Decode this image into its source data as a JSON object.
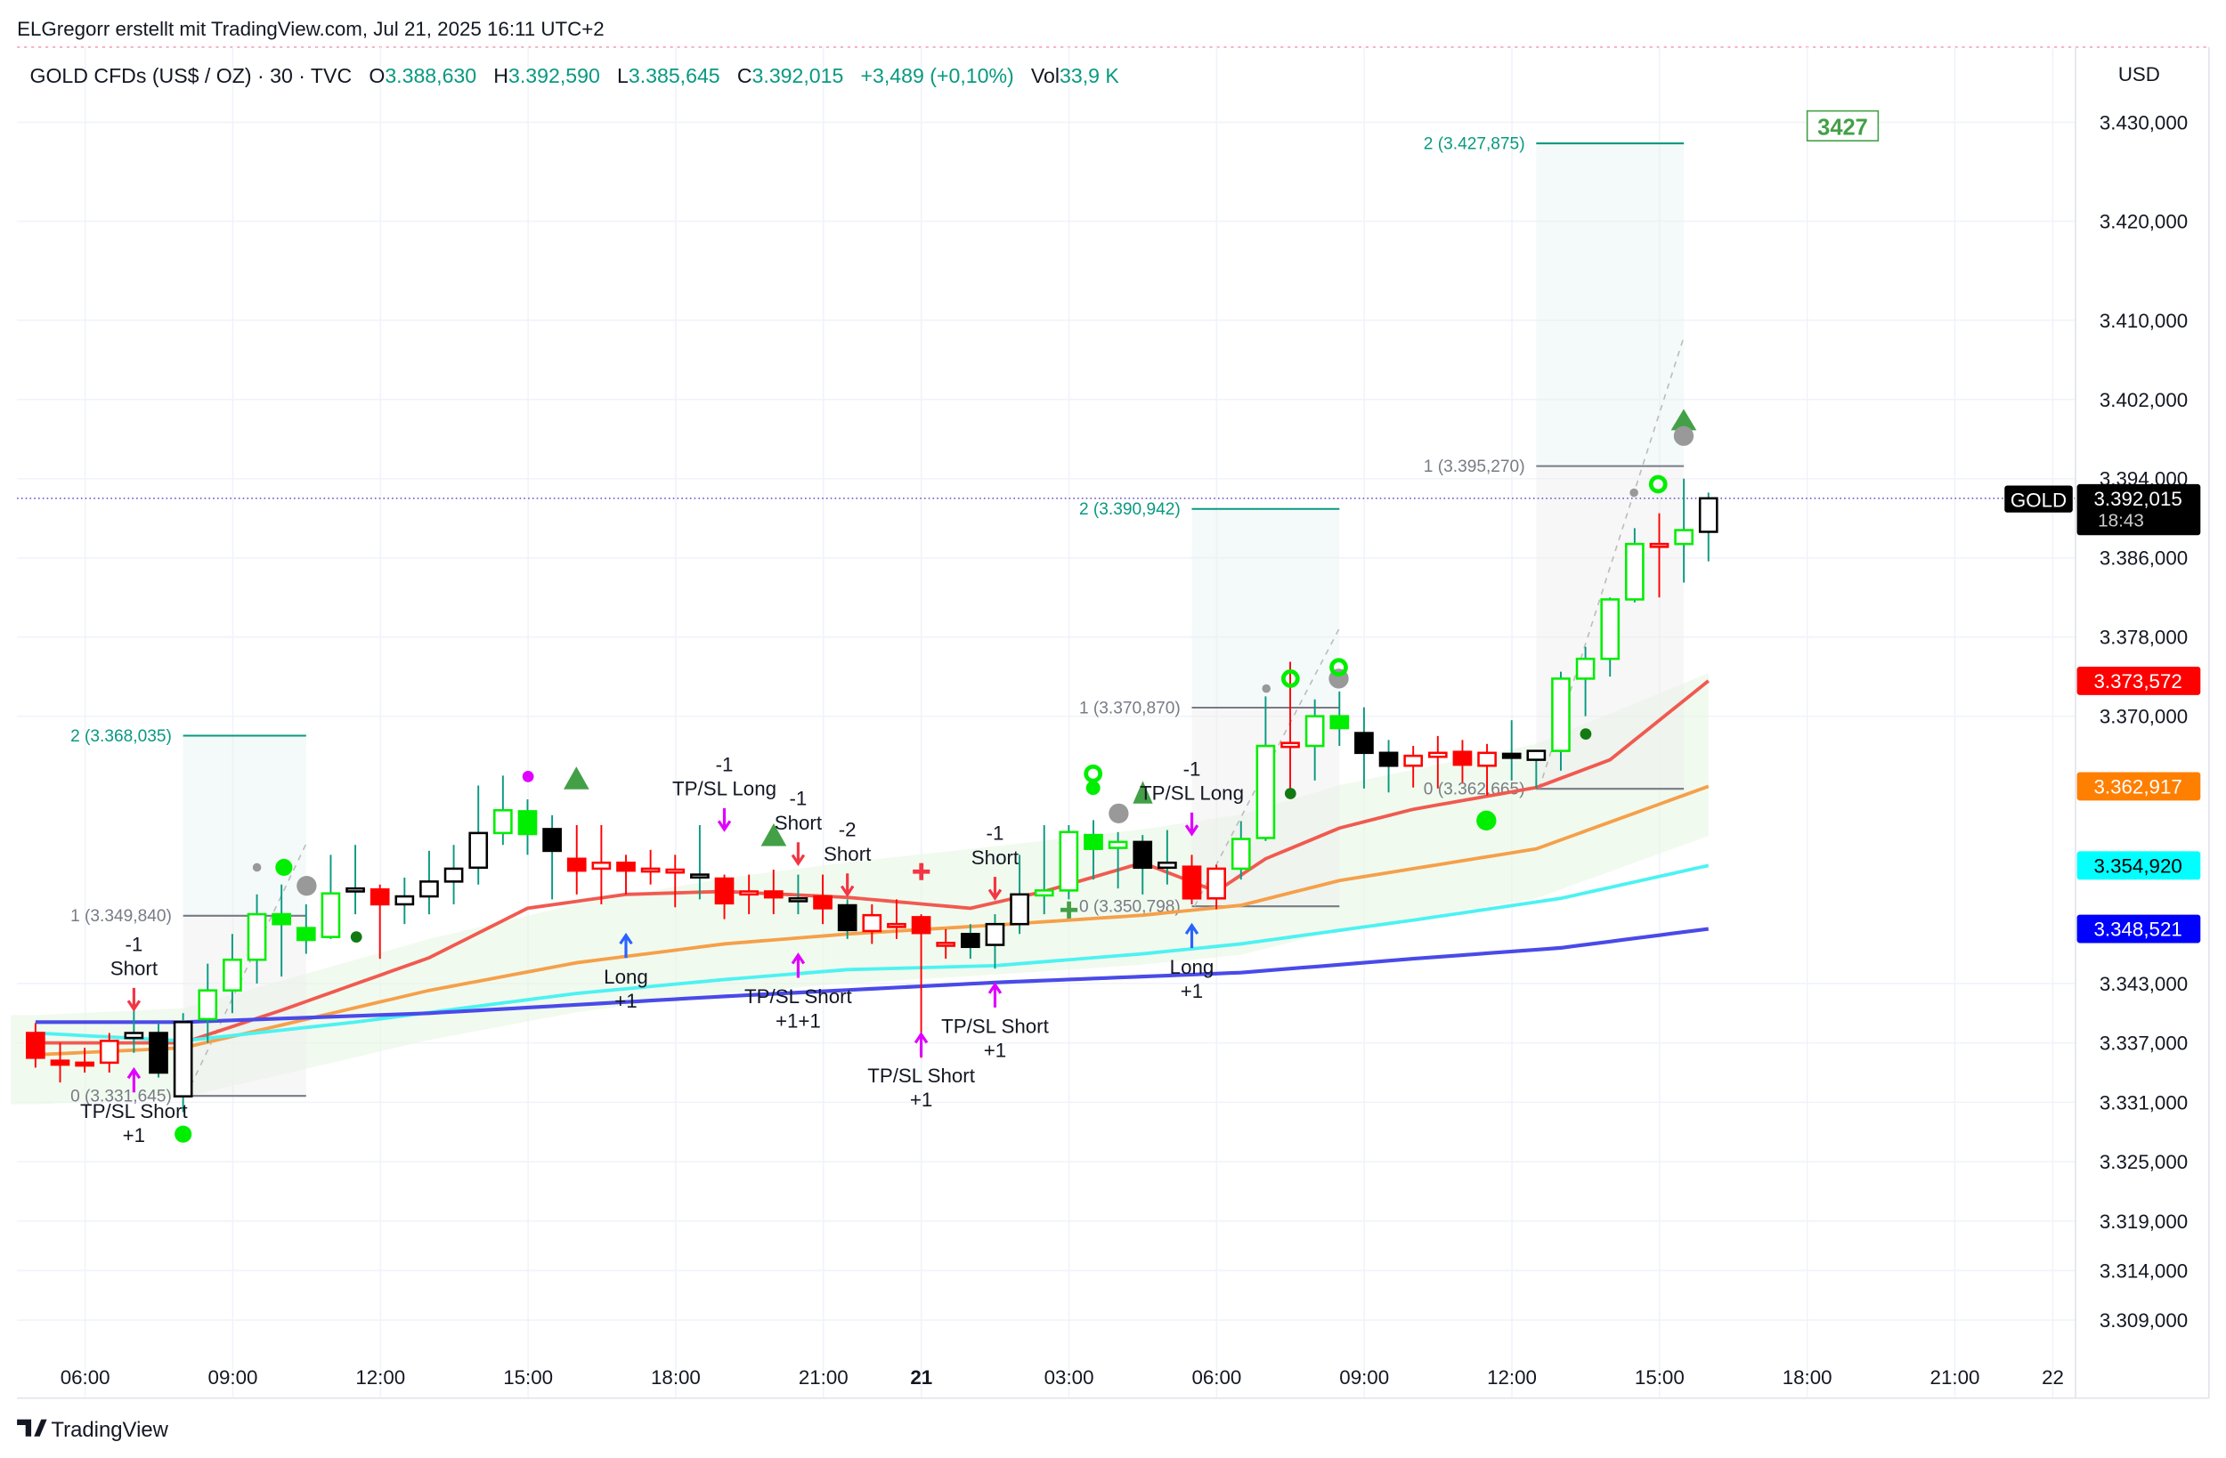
{
  "header": {
    "credit": "ELGregorr erstellt mit TradingView.com, Jul 21, 2025 16:11 UTC+2",
    "symbol": "GOLD CFDs (US$ / OZ) · 30 · TVC",
    "o_label": "O",
    "o_value": "3.388,630",
    "h_label": "H",
    "h_value": "3.392,590",
    "l_label": "L",
    "l_value": "3.385,645",
    "c_label": "C",
    "c_value": "3.392,015",
    "change": "+3,489 (+0,10%)",
    "vol_label": "Vol",
    "vol_value": "33,9 K"
  },
  "currency": "USD",
  "footer_logo": "TradingView",
  "target_badge": "3427",
  "price_labels": [
    {
      "name": "GOLD",
      "value": "3.392,015",
      "sub": "18:43",
      "color": "#000000",
      "price": 3392.015
    },
    {
      "value": "3.373,572",
      "color": "#ff0000",
      "price": 3373.572
    },
    {
      "value": "3.362,917",
      "color": "#ff7f00",
      "price": 3362.917
    },
    {
      "value": "3.354,920",
      "color": "#00ffff",
      "price": 3354.92
    },
    {
      "value": "3.348,521",
      "color": "#0000ff",
      "price": 3348.521
    }
  ],
  "chart_data": {
    "type": "candlestick",
    "interval": "30",
    "ylim": [
      3303,
      3437
    ],
    "grid": true,
    "y_ticks": [
      {
        "v": 3430,
        "label": "3.430,000"
      },
      {
        "v": 3420,
        "label": "3.420,000"
      },
      {
        "v": 3410,
        "label": "3.410,000"
      },
      {
        "v": 3402,
        "label": "3.402,000"
      },
      {
        "v": 3394,
        "label": "3.394,000"
      },
      {
        "v": 3386,
        "label": "3.386,000"
      },
      {
        "v": 3378,
        "label": "3.378,000"
      },
      {
        "v": 3370,
        "label": "3.370,000"
      },
      {
        "v": 3343,
        "label": "3.343,000"
      },
      {
        "v": 3337,
        "label": "3.337,000"
      },
      {
        "v": 3331,
        "label": "3.331,000"
      },
      {
        "v": 3325,
        "label": "3.325,000"
      },
      {
        "v": 3319,
        "label": "3.319,000"
      },
      {
        "v": 3314,
        "label": "3.314,000"
      },
      {
        "v": 3309,
        "label": "3.309,000"
      }
    ],
    "x_ticks": [
      {
        "i": 2,
        "label": "06:00"
      },
      {
        "i": 8,
        "label": "09:00"
      },
      {
        "i": 14,
        "label": "12:00"
      },
      {
        "i": 20,
        "label": "15:00"
      },
      {
        "i": 26,
        "label": "18:00"
      },
      {
        "i": 32,
        "label": "21:00"
      },
      {
        "i": 36,
        "label": "21",
        "bold": true
      },
      {
        "i": 42,
        "label": "03:00"
      },
      {
        "i": 48,
        "label": "06:00"
      },
      {
        "i": 54,
        "label": "09:00"
      },
      {
        "i": 60,
        "label": "12:00"
      },
      {
        "i": 66,
        "label": "15:00"
      },
      {
        "i": 72,
        "label": "18:00"
      },
      {
        "i": 78,
        "label": "21:00"
      },
      {
        "i": 82,
        "label": "22"
      }
    ],
    "candle_columns": [
      "open",
      "high",
      "low",
      "close",
      "color"
    ],
    "candles": [
      [
        3338.0,
        3339.0,
        3334.5,
        3335.5,
        "r"
      ],
      [
        3335.2,
        3337.0,
        3333.0,
        3334.8,
        "r"
      ],
      [
        3335.0,
        3336.5,
        3334.0,
        3334.8,
        "r"
      ],
      [
        3335.0,
        3338.0,
        3334.0,
        3337.2,
        "r"
      ],
      [
        3337.5,
        3341.0,
        3336.0,
        3338.0,
        "k"
      ],
      [
        3338.0,
        3339.0,
        3333.5,
        3334.0,
        "k"
      ],
      [
        3331.6,
        3340.0,
        3330.0,
        3339.1,
        "k"
      ],
      [
        3339.4,
        3345.0,
        3337.0,
        3342.3,
        "g"
      ],
      [
        3342.3,
        3348.0,
        3340.0,
        3345.4,
        "g"
      ],
      [
        3345.4,
        3352.0,
        3343.0,
        3350.0,
        "g"
      ],
      [
        3350.0,
        3353.0,
        3343.7,
        3349.0,
        "g"
      ],
      [
        3348.6,
        3351.0,
        3346.0,
        3347.4,
        "g"
      ],
      [
        3347.7,
        3356.0,
        3347.5,
        3352.1,
        "g"
      ],
      [
        3352.3,
        3357.0,
        3350.0,
        3352.6,
        "k"
      ],
      [
        3352.5,
        3353.0,
        3345.5,
        3351.0,
        "r"
      ],
      [
        3351.0,
        3353.7,
        3349.0,
        3351.8,
        "k"
      ],
      [
        3351.8,
        3356.4,
        3350.0,
        3353.3,
        "k"
      ],
      [
        3353.3,
        3357.0,
        3351.0,
        3354.6,
        "k"
      ],
      [
        3354.7,
        3363.0,
        3353.0,
        3358.2,
        "k"
      ],
      [
        3358.2,
        3364.0,
        3357.0,
        3360.5,
        "g"
      ],
      [
        3360.4,
        3361.6,
        3356.0,
        3358.1,
        "g"
      ],
      [
        3358.6,
        3360.0,
        3351.5,
        3356.4,
        "k"
      ],
      [
        3355.6,
        3359.0,
        3352.0,
        3354.4,
        "r"
      ],
      [
        3354.6,
        3359.0,
        3351.0,
        3355.2,
        "r"
      ],
      [
        3355.2,
        3356.0,
        3352.0,
        3354.4,
        "r"
      ],
      [
        3354.6,
        3356.5,
        3353.0,
        3354.6,
        "r"
      ],
      [
        3354.5,
        3356.0,
        3350.7,
        3354.5,
        "r"
      ],
      [
        3354.0,
        3359.0,
        3351.5,
        3354.0,
        "k"
      ],
      [
        3353.6,
        3354.0,
        3349.5,
        3351.1,
        "r"
      ],
      [
        3352.0,
        3354.0,
        3350.0,
        3352.3,
        "r"
      ],
      [
        3352.3,
        3354.5,
        3350.0,
        3351.7,
        "r"
      ],
      [
        3351.6,
        3354.0,
        3350.0,
        3351.6,
        "k"
      ],
      [
        3351.8,
        3354.0,
        3349.0,
        3350.6,
        "r"
      ],
      [
        3350.9,
        3351.5,
        3347.5,
        3348.4,
        "k"
      ],
      [
        3348.3,
        3351.0,
        3347.0,
        3349.9,
        "r"
      ],
      [
        3349.0,
        3351.5,
        3347.5,
        3349.0,
        "r"
      ],
      [
        3349.7,
        3350.0,
        3335.5,
        3348.1,
        "r"
      ],
      [
        3347.1,
        3348.5,
        3345.5,
        3347.1,
        "r"
      ],
      [
        3348.0,
        3349.0,
        3345.5,
        3346.7,
        "k"
      ],
      [
        3346.9,
        3350.0,
        3344.5,
        3349.0,
        "k"
      ],
      [
        3349.0,
        3356.0,
        3348.0,
        3352.0,
        "k"
      ],
      [
        3351.9,
        3359.0,
        3350.0,
        3352.4,
        "g"
      ],
      [
        3352.4,
        3359.0,
        3351.5,
        3358.3,
        "g"
      ],
      [
        3358.0,
        3359.5,
        3353.5,
        3356.6,
        "g"
      ],
      [
        3356.7,
        3358.3,
        3352.6,
        3357.3,
        "g"
      ],
      [
        3357.3,
        3358.0,
        3352.0,
        3354.7,
        "k"
      ],
      [
        3354.7,
        3358.5,
        3353.0,
        3355.2,
        "k"
      ],
      [
        3354.8,
        3356.0,
        3351.0,
        3351.6,
        "r"
      ],
      [
        3351.6,
        3355.0,
        3350.5,
        3354.6,
        "r"
      ],
      [
        3354.6,
        3359.4,
        3353.5,
        3357.6,
        "g"
      ],
      [
        3357.7,
        3372.0,
        3357.4,
        3367.0,
        "g"
      ],
      [
        3366.9,
        3375.5,
        3362.5,
        3367.3,
        "r"
      ],
      [
        3367.0,
        3371.7,
        3363.5,
        3370.0,
        "g"
      ],
      [
        3370.0,
        3372.5,
        3367.0,
        3368.8,
        "g"
      ],
      [
        3368.3,
        3370.9,
        3362.7,
        3366.3,
        "k"
      ],
      [
        3366.3,
        3367.6,
        3362.3,
        3365.0,
        "k"
      ],
      [
        3365.0,
        3367.0,
        3362.8,
        3366.0,
        "r"
      ],
      [
        3365.9,
        3368.0,
        3362.7,
        3366.3,
        "r"
      ],
      [
        3366.4,
        3367.6,
        3363.3,
        3365.1,
        "r"
      ],
      [
        3365.0,
        3367.2,
        3362.0,
        3366.3,
        "r"
      ],
      [
        3366.2,
        3369.6,
        3363.5,
        3365.8,
        "k"
      ],
      [
        3365.6,
        3366.5,
        3362.7,
        3366.5,
        "k"
      ],
      [
        3366.5,
        3374.5,
        3364.5,
        3373.8,
        "g"
      ],
      [
        3373.8,
        3377.0,
        3370.0,
        3375.8,
        "g"
      ],
      [
        3375.8,
        3382.0,
        3374.0,
        3381.8,
        "g"
      ],
      [
        3381.8,
        3389.0,
        3381.5,
        3387.4,
        "g"
      ],
      [
        3387.4,
        3390.5,
        3382.0,
        3387.4,
        "r"
      ],
      [
        3387.4,
        3394.0,
        3383.5,
        3388.8,
        "g"
      ],
      [
        3388.63,
        3392.59,
        3385.645,
        3392.015,
        "k"
      ]
    ],
    "moving_averages": [
      {
        "color": "#f05a50",
        "points": [
          [
            0,
            3337
          ],
          [
            6,
            3337
          ],
          [
            10,
            3340.3
          ],
          [
            16,
            3345.6
          ],
          [
            20,
            3350.6
          ],
          [
            24,
            3352
          ],
          [
            28,
            3352.3
          ],
          [
            33,
            3351.7
          ],
          [
            38,
            3350.6
          ],
          [
            41,
            3352.3
          ],
          [
            45,
            3355.2
          ],
          [
            48,
            3352.3
          ],
          [
            50,
            3355.6
          ],
          [
            53,
            3358.7
          ],
          [
            56,
            3360.6
          ],
          [
            61,
            3362.8
          ],
          [
            64,
            3365.6
          ],
          [
            68,
            3373.572
          ]
        ]
      },
      {
        "color": "#f5a04a",
        "points": [
          [
            0,
            3335.8
          ],
          [
            6,
            3336.5
          ],
          [
            10,
            3338.8
          ],
          [
            16,
            3342.3
          ],
          [
            22,
            3345.1
          ],
          [
            28,
            3347
          ],
          [
            33,
            3348
          ],
          [
            39,
            3348.9
          ],
          [
            45,
            3349.9
          ],
          [
            49,
            3350.9
          ],
          [
            53,
            3353.4
          ],
          [
            61,
            3356.6
          ],
          [
            68,
            3362.917
          ]
        ]
      },
      {
        "color": "#4df2f2",
        "points": [
          [
            0,
            3338
          ],
          [
            6,
            3337.2
          ],
          [
            13,
            3339.1
          ],
          [
            22,
            3342
          ],
          [
            28,
            3343.4
          ],
          [
            33,
            3344.4
          ],
          [
            39,
            3344.8
          ],
          [
            45,
            3346
          ],
          [
            49,
            3347
          ],
          [
            56,
            3349.4
          ],
          [
            62,
            3351.6
          ],
          [
            68,
            3354.92
          ]
        ]
      },
      {
        "color": "#4a4ae8",
        "points": [
          [
            0,
            3339.1
          ],
          [
            6,
            3339.1
          ],
          [
            16,
            3340
          ],
          [
            28,
            3341.7
          ],
          [
            39,
            3343.1
          ],
          [
            49,
            3344.1
          ],
          [
            56,
            3345.5
          ],
          [
            62,
            3346.6
          ],
          [
            68,
            3348.521
          ]
        ]
      }
    ],
    "position_boxes": [
      {
        "from": 6,
        "to": 11,
        "levels": [
          {
            "price": 3368.035,
            "label": "2 (3.368,035)"
          },
          {
            "price": 3349.84,
            "label": "1 (3.349,840)"
          },
          {
            "price": 3331.645,
            "label": "0 (3.331,645)"
          }
        ]
      },
      {
        "from": 47,
        "to": 53,
        "levels": [
          {
            "price": 3390.942,
            "label": "2 (3.390,942)"
          },
          {
            "price": 3370.87,
            "label": "1 (3.370,870)"
          },
          {
            "price": 3350.798,
            "label": "0 (3.350,798)"
          }
        ]
      },
      {
        "from": 61,
        "to": 67,
        "levels": [
          {
            "price": 3427.875,
            "label": "2 (3.427,875)"
          },
          {
            "price": 3395.27,
            "label": "1 (3.395,270)"
          },
          {
            "price": 3362.665,
            "label": "0 (3.362,665)"
          }
        ]
      }
    ],
    "signals": [
      {
        "i": 4,
        "price": 3348,
        "lines": [
          "-1",
          "Short"
        ],
        "arrow": "down",
        "color": "#f23645"
      },
      {
        "i": 4,
        "price": 3332,
        "lines": [
          "TP/SL Short",
          "+1"
        ],
        "arrow": "up",
        "color": "#e000ff"
      },
      {
        "i": 24,
        "price": 3343,
        "lines": [
          "Long",
          "+1"
        ],
        "arrow": "up",
        "color": "#2962ff"
      },
      {
        "i": 28,
        "price": 3363,
        "lines": [
          "-1",
          "TP/SL Long"
        ],
        "arrow": "down",
        "color": "#e000ff"
      },
      {
        "i": 31,
        "price": 3361,
        "lines": [
          "-1",
          "Short"
        ],
        "arrow": "down",
        "color": "#f23645"
      },
      {
        "i": 33,
        "price": 3359,
        "lines": [
          "-2",
          "Short"
        ],
        "arrow": "down",
        "color": "#f23645"
      },
      {
        "i": 31,
        "price": 3341,
        "lines": [
          "TP/SL Short",
          "+1+1"
        ],
        "arrow": "up",
        "color": "#e000ff"
      },
      {
        "i": 36,
        "price": 3333,
        "lines": [
          "TP/SL Short",
          "+1"
        ],
        "arrow": "up",
        "color": "#e000ff"
      },
      {
        "i": 39,
        "price": 3357.5,
        "lines": [
          "-1",
          "Short"
        ],
        "arrow": "down",
        "color": "#f23645"
      },
      {
        "i": 39,
        "price": 3338,
        "lines": [
          "TP/SL Short",
          "+1"
        ],
        "arrow": "up",
        "color": "#e000ff"
      },
      {
        "i": 47,
        "price": 3364,
        "lines": [
          "-1",
          "TP/SL Long"
        ],
        "arrow": "down",
        "color": "#e000ff"
      },
      {
        "i": 47,
        "price": 3344,
        "lines": [
          "Long",
          "+1"
        ],
        "arrow": "up",
        "color": "#2962ff"
      }
    ]
  }
}
